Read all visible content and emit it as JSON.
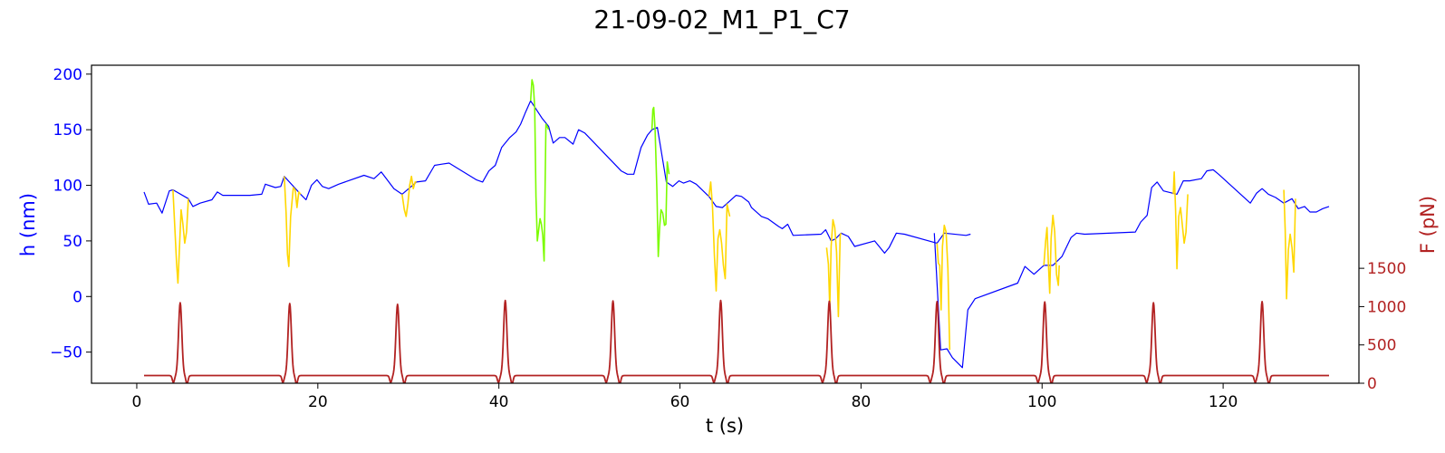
{
  "chart_data": {
    "type": "line",
    "title": "21-09-02_M1_P1_C7",
    "xlabel": "t (s)",
    "ylabel": "h (nm)",
    "y2label": "F (pN)",
    "xlim": [
      -5,
      135
    ],
    "ylim": [
      -78,
      208
    ],
    "y2lim": [
      0,
      4150
    ],
    "x_ticks": [
      0,
      20,
      40,
      60,
      80,
      100,
      120
    ],
    "y_ticks": [
      -50,
      0,
      50,
      100,
      150,
      200
    ],
    "y2_ticks": [
      0,
      500,
      1000,
      1500
    ],
    "grid": false,
    "colors": {
      "height": "#0000ff",
      "force_ramp": "#ffd700",
      "force_ramp_alt": "#7cfc00",
      "force": "#b22222",
      "axes": "#000000"
    },
    "series": [
      {
        "role": "height",
        "axis": "left",
        "color": "#0000ff",
        "points": [
          [
            0.8,
            94
          ],
          [
            1.3,
            83
          ],
          [
            2.2,
            84
          ],
          [
            2.8,
            75
          ],
          [
            3.6,
            95
          ],
          [
            4.0,
            96
          ],
          [
            5.7,
            88
          ],
          [
            6.2,
            81
          ],
          [
            7.0,
            84
          ],
          [
            8.3,
            87
          ],
          [
            8.9,
            94
          ],
          [
            9.5,
            91
          ],
          [
            12.5,
            91
          ],
          [
            13.8,
            92
          ],
          [
            14.2,
            101
          ],
          [
            15.3,
            98
          ],
          [
            15.9,
            99
          ],
          [
            16.3,
            108
          ],
          [
            18.1,
            92
          ],
          [
            18.7,
            87
          ],
          [
            19.3,
            100
          ],
          [
            19.9,
            105
          ],
          [
            20.5,
            99
          ],
          [
            21.2,
            97
          ],
          [
            22.3,
            101
          ],
          [
            25.1,
            109
          ],
          [
            26.2,
            106
          ],
          [
            27.0,
            112
          ],
          [
            28.4,
            97
          ],
          [
            29.3,
            92
          ],
          [
            30.9,
            103
          ],
          [
            31.9,
            104
          ],
          [
            32.9,
            118
          ],
          [
            33.7,
            119
          ],
          [
            34.5,
            120
          ],
          [
            37.5,
            105
          ],
          [
            38.2,
            103
          ],
          [
            38.9,
            113
          ],
          [
            39.6,
            118
          ],
          [
            40.3,
            134
          ],
          [
            41.2,
            143
          ],
          [
            41.9,
            148
          ],
          [
            42.4,
            155
          ],
          [
            42.9,
            165
          ],
          [
            43.5,
            176
          ],
          [
            44.8,
            160
          ],
          [
            45.5,
            153
          ],
          [
            46.0,
            138
          ],
          [
            46.7,
            143
          ],
          [
            47.3,
            143
          ],
          [
            48.2,
            137
          ],
          [
            48.8,
            150
          ],
          [
            49.5,
            147
          ],
          [
            53.5,
            113
          ],
          [
            54.2,
            110
          ],
          [
            54.9,
            110
          ],
          [
            55.7,
            134
          ],
          [
            56.4,
            145
          ],
          [
            56.9,
            150
          ],
          [
            57.5,
            152
          ],
          [
            58.5,
            103
          ],
          [
            59.2,
            99
          ],
          [
            59.9,
            104
          ],
          [
            60.4,
            102
          ],
          [
            61.1,
            104
          ],
          [
            61.8,
            101
          ],
          [
            63.2,
            90
          ],
          [
            64.0,
            81
          ],
          [
            64.7,
            80
          ],
          [
            66.2,
            91
          ],
          [
            66.8,
            90
          ],
          [
            67.6,
            85
          ],
          [
            67.9,
            80
          ],
          [
            69.0,
            72
          ],
          [
            69.7,
            70
          ],
          [
            70.9,
            63
          ],
          [
            71.3,
            61
          ],
          [
            71.9,
            65
          ],
          [
            72.5,
            55
          ],
          [
            75.6,
            56
          ],
          [
            76.1,
            60
          ],
          [
            76.7,
            50
          ],
          [
            77.2,
            52
          ],
          [
            77.8,
            57
          ],
          [
            78.6,
            54
          ],
          [
            79.3,
            45
          ],
          [
            81.5,
            50
          ],
          [
            82.0,
            45
          ],
          [
            82.6,
            39
          ],
          [
            83.1,
            44
          ],
          [
            83.9,
            57
          ],
          [
            84.8,
            56
          ],
          [
            88.4,
            48
          ],
          [
            89.2,
            57
          ],
          [
            91.6,
            55
          ],
          [
            92.1,
            56
          ],
          [
            88.1,
            57
          ],
          [
            88.8,
            -48
          ],
          [
            89.5,
            -47
          ],
          [
            90.1,
            -55
          ],
          [
            91.2,
            -64
          ],
          [
            91.8,
            -12
          ],
          [
            92.6,
            -2
          ],
          [
            97.3,
            12
          ],
          [
            98.1,
            27
          ],
          [
            99.1,
            20
          ],
          [
            100.2,
            28
          ],
          [
            101.2,
            28
          ],
          [
            102.2,
            36
          ],
          [
            103.2,
            53
          ],
          [
            103.8,
            57
          ],
          [
            104.7,
            56
          ],
          [
            110.3,
            58
          ],
          [
            110.9,
            67
          ],
          [
            111.6,
            73
          ],
          [
            112.1,
            98
          ],
          [
            112.7,
            103
          ],
          [
            113.4,
            95
          ],
          [
            114.9,
            92
          ],
          [
            115.6,
            104
          ],
          [
            116.3,
            104
          ],
          [
            117.6,
            106
          ],
          [
            118.2,
            113
          ],
          [
            118.9,
            114
          ],
          [
            119.5,
            110
          ],
          [
            123.0,
            84
          ],
          [
            123.7,
            93
          ],
          [
            124.3,
            97
          ],
          [
            125.0,
            92
          ],
          [
            125.8,
            89
          ],
          [
            126.7,
            84
          ],
          [
            127.6,
            88
          ],
          [
            128.3,
            79
          ],
          [
            129.0,
            81
          ],
          [
            129.6,
            76
          ],
          [
            130.3,
            76
          ],
          [
            131.0,
            79
          ],
          [
            131.7,
            81
          ]
        ]
      },
      {
        "role": "height-during-pulse",
        "axis": "left",
        "color": "#ffd700",
        "segments": [
          [
            [
              4.0,
              96
            ],
            [
              4.25,
              55
            ],
            [
              4.4,
              30
            ],
            [
              4.55,
              12
            ],
            [
              4.7,
              40
            ],
            [
              4.9,
              78
            ],
            [
              5.1,
              65
            ],
            [
              5.3,
              48
            ],
            [
              5.5,
              58
            ],
            [
              5.7,
              88
            ]
          ],
          [
            [
              16.3,
              108
            ],
            [
              16.5,
              75
            ],
            [
              16.65,
              38
            ],
            [
              16.8,
              27
            ],
            [
              17.0,
              72
            ],
            [
              17.3,
              98
            ],
            [
              17.5,
              96
            ],
            [
              17.7,
              80
            ],
            [
              17.9,
              94
            ],
            [
              18.1,
              92
            ]
          ],
          [
            [
              29.3,
              92
            ],
            [
              29.55,
              78
            ],
            [
              29.75,
              72
            ],
            [
              29.95,
              84
            ],
            [
              30.15,
              100
            ],
            [
              30.35,
              108
            ],
            [
              30.55,
              97
            ],
            [
              30.75,
              103
            ],
            [
              30.9,
              103
            ]
          ],
          [
            [
              63.2,
              90
            ],
            [
              63.4,
              103
            ],
            [
              63.6,
              80
            ],
            [
              63.8,
              38
            ],
            [
              64.0,
              5
            ],
            [
              64.2,
              52
            ],
            [
              64.4,
              60
            ],
            [
              64.6,
              48
            ],
            [
              64.8,
              28
            ],
            [
              65.0,
              16
            ],
            [
              65.2,
              83
            ],
            [
              65.5,
              72
            ]
          ],
          [
            [
              76.2,
              44
            ],
            [
              76.4,
              29
            ],
            [
              76.55,
              -10
            ],
            [
              76.7,
              45
            ],
            [
              76.9,
              69
            ],
            [
              77.1,
              62
            ],
            [
              77.3,
              40
            ],
            [
              77.5,
              -18
            ],
            [
              77.7,
              55
            ],
            [
              77.8,
              57
            ]
          ],
          [
            [
              88.4,
              48
            ],
            [
              88.55,
              30
            ],
            [
              88.7,
              28
            ],
            [
              88.85,
              -12
            ],
            [
              89.0,
              45
            ],
            [
              89.2,
              64
            ],
            [
              89.4,
              58
            ],
            [
              89.6,
              25
            ],
            [
              89.8,
              -48
            ]
          ],
          [
            [
              100.2,
              28
            ],
            [
              100.4,
              50
            ],
            [
              100.55,
              62
            ],
            [
              100.7,
              30
            ],
            [
              100.85,
              3
            ],
            [
              101.0,
              52
            ],
            [
              101.2,
              73
            ],
            [
              101.4,
              58
            ],
            [
              101.6,
              20
            ],
            [
              101.8,
              10
            ],
            [
              101.9,
              28
            ]
          ],
          [
            [
              114.5,
              92
            ],
            [
              114.6,
              112
            ],
            [
              114.75,
              78
            ],
            [
              114.9,
              25
            ],
            [
              115.1,
              72
            ],
            [
              115.3,
              80
            ],
            [
              115.5,
              64
            ],
            [
              115.7,
              48
            ],
            [
              115.9,
              58
            ],
            [
              116.1,
              92
            ]
          ],
          [
            [
              126.7,
              96
            ],
            [
              126.85,
              60
            ],
            [
              127.0,
              -2
            ],
            [
              127.2,
              42
            ],
            [
              127.4,
              56
            ],
            [
              127.6,
              44
            ],
            [
              127.8,
              22
            ],
            [
              128.0,
              88
            ]
          ]
        ]
      },
      {
        "role": "height-during-pulse",
        "axis": "left",
        "color": "#7cfc00",
        "segments": [
          [
            [
              43.5,
              176
            ],
            [
              43.65,
              195
            ],
            [
              43.8,
              190
            ],
            [
              43.95,
              170
            ],
            [
              44.1,
              90
            ],
            [
              44.25,
              50
            ],
            [
              44.4,
              60
            ],
            [
              44.55,
              70
            ],
            [
              44.7,
              65
            ],
            [
              44.85,
              55
            ],
            [
              45.0,
              32
            ],
            [
              45.2,
              155
            ],
            [
              45.5,
              150
            ]
          ],
          [
            [
              56.9,
              150
            ],
            [
              57.0,
              168
            ],
            [
              57.1,
              170
            ],
            [
              57.25,
              150
            ],
            [
              57.45,
              95
            ],
            [
              57.6,
              36
            ],
            [
              57.75,
              62
            ],
            [
              57.9,
              78
            ],
            [
              58.1,
              75
            ],
            [
              58.3,
              64
            ],
            [
              58.45,
              65
            ],
            [
              58.6,
              121
            ],
            [
              58.8,
              110
            ]
          ]
        ]
      },
      {
        "role": "force",
        "axis": "right",
        "color": "#b22222",
        "baseline": 100,
        "pulses": [
          {
            "t": 4.8,
            "peak": 1050
          },
          {
            "t": 16.9,
            "peak": 1040
          },
          {
            "t": 28.8,
            "peak": 1030
          },
          {
            "t": 40.7,
            "peak": 1080
          },
          {
            "t": 52.6,
            "peak": 1075
          },
          {
            "t": 64.5,
            "peak": 1080
          },
          {
            "t": 76.5,
            "peak": 1070
          },
          {
            "t": 88.4,
            "peak": 1065
          },
          {
            "t": 100.3,
            "peak": 1060
          },
          {
            "t": 112.3,
            "peak": 1050
          },
          {
            "t": 124.3,
            "peak": 1065
          }
        ],
        "x_start": 0.8,
        "x_end": 131.7
      }
    ]
  }
}
